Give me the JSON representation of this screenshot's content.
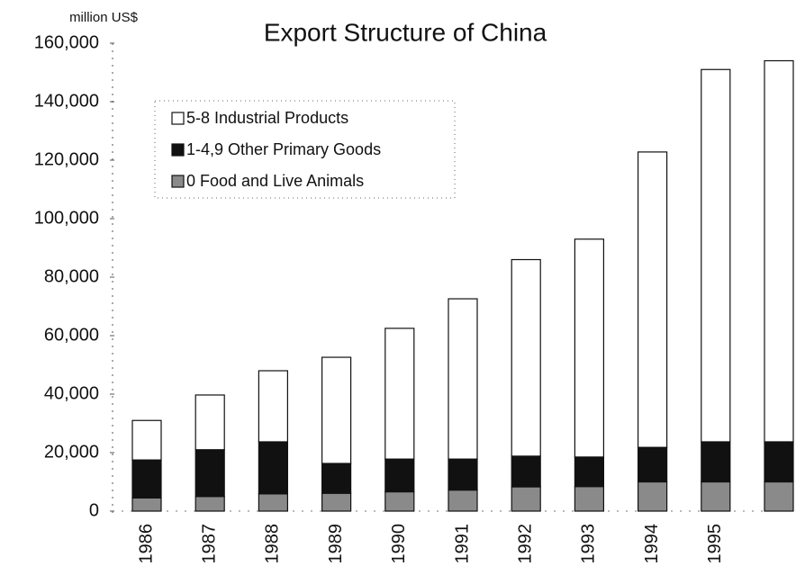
{
  "chart_data": {
    "type": "stacked_bar",
    "title": "Export Structure of China",
    "y_label": "million US$",
    "categories": [
      "1986",
      "1987",
      "1988",
      "1989",
      "1990",
      "1991",
      "1992",
      "1993",
      "1994",
      "1995",
      null
    ],
    "series": [
      {
        "name": "5-8 Industrial Products",
        "color": "#ffffff",
        "values": [
          13500,
          18700,
          24300,
          36300,
          44700,
          54800,
          67200,
          74500,
          101000,
          127300,
          130300
        ]
      },
      {
        "name": "1-4,9 Other Primary Goods",
        "color": "#111111",
        "values": [
          13000,
          16000,
          17800,
          10200,
          11200,
          10600,
          10500,
          10100,
          11800,
          13700,
          13700
        ]
      },
      {
        "name": "0 Food and Live Animals",
        "color": "#8a8a8a",
        "values": [
          4500,
          5000,
          5900,
          6100,
          6600,
          7200,
          8300,
          8400,
          10000,
          10000,
          10000
        ]
      }
    ],
    "ylim": [
      0,
      160000
    ],
    "yticks": [
      0,
      {
        "value": 20000,
        "label": "20,000"
      },
      {
        "value": 40000,
        "label": "40,000"
      },
      {
        "value": 60000,
        "label": "60,000"
      },
      {
        "value": 80000,
        "label": "80,000"
      },
      {
        "value": 100000,
        "label": "100,000"
      },
      {
        "value": 120000,
        "label": "120,000"
      },
      {
        "value": 140000,
        "label": "140,000"
      },
      {
        "value": 160000,
        "label": "160,000"
      }
    ],
    "grid": false,
    "legend": "upper left"
  }
}
